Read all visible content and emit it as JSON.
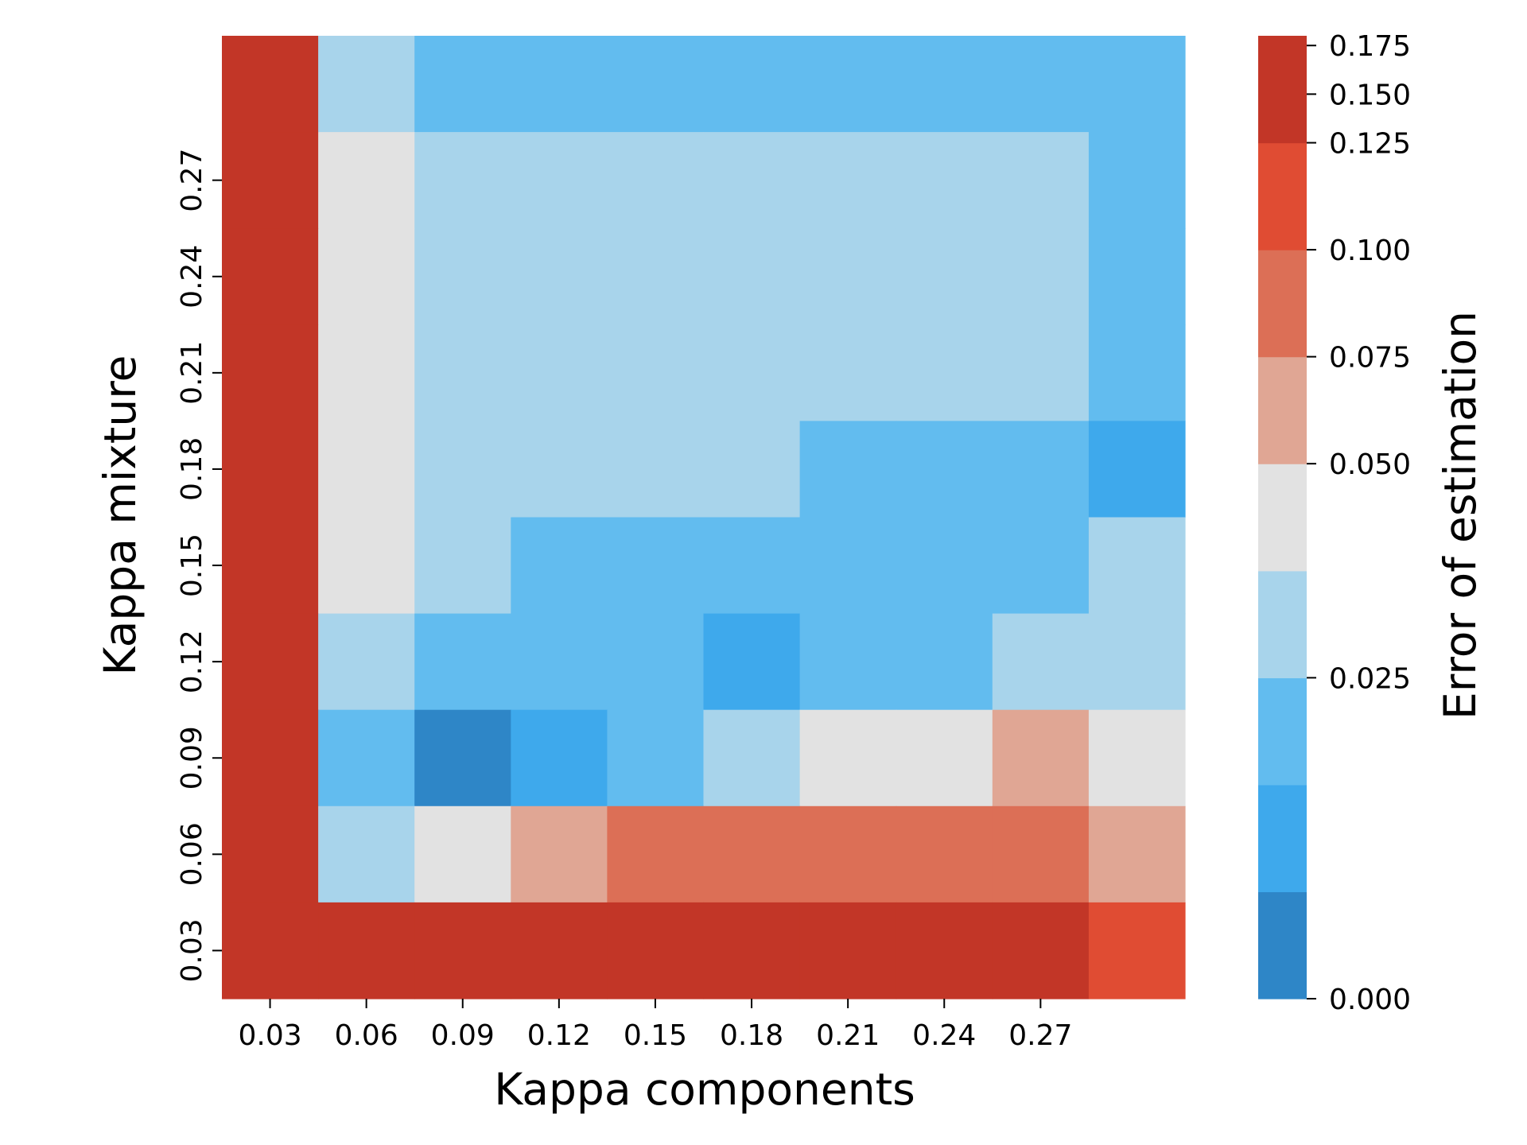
{
  "chart_data": {
    "type": "heatmap",
    "title": "",
    "xlabel": "Kappa components",
    "ylabel": "Kappa mixture",
    "x_tick_labels": [
      "0.03",
      "0.06",
      "0.09",
      "0.12",
      "0.15",
      "0.18",
      "0.21",
      "0.24",
      "0.27"
    ],
    "y_tick_labels": [
      "0.03",
      "0.06",
      "0.09",
      "0.12",
      "0.15",
      "0.18",
      "0.21",
      "0.24",
      "0.27"
    ],
    "n_cols": 10,
    "n_rows": 10,
    "row_order": "top-to-bottom",
    "color_levels": [
      "#2e86c7",
      "#3ea9ec",
      "#62bcef",
      "#a8d4eb",
      "#e2e2e2",
      "#e0a694",
      "#dc6f56",
      "#e04c33",
      "#c23627"
    ],
    "grid": [
      [
        8,
        3,
        2,
        2,
        2,
        2,
        2,
        2,
        2,
        2
      ],
      [
        8,
        4,
        3,
        3,
        3,
        3,
        3,
        3,
        3,
        2
      ],
      [
        8,
        4,
        3,
        3,
        3,
        3,
        3,
        3,
        3,
        2
      ],
      [
        8,
        4,
        3,
        3,
        3,
        3,
        3,
        3,
        3,
        2
      ],
      [
        8,
        4,
        3,
        3,
        3,
        3,
        2,
        2,
        2,
        1
      ],
      [
        8,
        4,
        3,
        2,
        2,
        2,
        2,
        2,
        2,
        3
      ],
      [
        8,
        3,
        2,
        2,
        2,
        1,
        2,
        2,
        3,
        3
      ],
      [
        8,
        2,
        0,
        1,
        2,
        3,
        4,
        4,
        5,
        4
      ],
      [
        8,
        3,
        4,
        5,
        6,
        6,
        6,
        6,
        6,
        5
      ],
      [
        8,
        8,
        8,
        8,
        8,
        8,
        8,
        8,
        8,
        7
      ]
    ],
    "colorbar": {
      "label": "Error of estimation",
      "ticks": [
        "0.000",
        "0.025",
        "0.050",
        "0.075",
        "0.100",
        "0.125",
        "0.150",
        "0.175"
      ]
    },
    "grid_lines": false,
    "legend": "colorbar-right"
  }
}
